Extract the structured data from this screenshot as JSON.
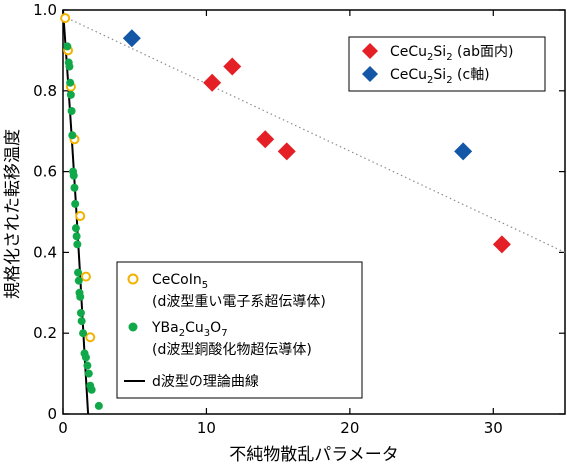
{
  "chart_data": {
    "type": "scatter",
    "xlabel": "不純物散乱パラメータ",
    "ylabel": "規格化された転移温度",
    "xlim": [
      0,
      35
    ],
    "ylim": [
      0,
      1.0
    ],
    "x_ticks": [
      "0",
      "10",
      "20",
      "30"
    ],
    "y_ticks": [
      "0",
      "0.2",
      "0.4",
      "0.6",
      "0.8",
      "1.0"
    ],
    "grid": false,
    "series": [
      {
        "name": "CeCu2Si2 (ab面内)",
        "legend_parts": [
          "CeCu",
          "2",
          "Si",
          "2",
          " (ab面内)"
        ],
        "marker": "diamond-filled",
        "color": "#e41f26",
        "x": [
          10.4,
          11.8,
          14.1,
          15.6,
          30.6
        ],
        "y": [
          0.82,
          0.86,
          0.68,
          0.65,
          0.42
        ]
      },
      {
        "name": "CeCu2Si2 (c軸)",
        "legend_parts": [
          "CeCu",
          "2",
          "Si",
          "2",
          " (c軸)"
        ],
        "marker": "diamond-filled",
        "color": "#1357a6",
        "x": [
          4.8,
          27.9
        ],
        "y": [
          0.93,
          0.65
        ]
      },
      {
        "name": "CeCoIn5 (d波型重い電子系超伝導体)",
        "legend_parts": [
          "CeCoIn",
          "5"
        ],
        "legend_note": "(d波型重い電子系超伝導体)",
        "marker": "circle-open",
        "color": "#f2b200",
        "x": [
          0.15,
          0.35,
          0.55,
          0.8,
          1.2,
          1.6,
          1.9
        ],
        "y": [
          0.98,
          0.9,
          0.81,
          0.68,
          0.49,
          0.34,
          0.19
        ]
      },
      {
        "name": "YBa2Cu3O7 (d波型銅酸化物超伝導体)",
        "legend_parts": [
          "YBa",
          "2",
          "Cu",
          "3",
          "O",
          "7"
        ],
        "legend_note": "(d波型銅酸化物超伝導体)",
        "marker": "circle-filled",
        "color": "#11a84a",
        "x": [
          0.3,
          0.4,
          0.45,
          0.5,
          0.55,
          0.6,
          0.65,
          0.7,
          0.75,
          0.8,
          0.85,
          0.9,
          0.95,
          1.0,
          1.05,
          1.1,
          1.15,
          1.2,
          1.25,
          1.3,
          1.4,
          1.5,
          1.6,
          1.7,
          1.8,
          1.9,
          2.0,
          2.5
        ],
        "y": [
          0.91,
          0.87,
          0.86,
          0.82,
          0.79,
          0.75,
          0.69,
          0.6,
          0.59,
          0.56,
          0.52,
          0.46,
          0.44,
          0.42,
          0.35,
          0.33,
          0.3,
          0.29,
          0.25,
          0.23,
          0.2,
          0.15,
          0.14,
          0.12,
          0.1,
          0.07,
          0.06,
          0.02
        ]
      },
      {
        "name": "d波型の理論曲線",
        "marker": "line",
        "color": "#000000",
        "x": [
          0.0,
          0.3,
          0.6,
          0.9,
          1.2,
          1.5,
          1.75
        ],
        "y": [
          1.0,
          0.85,
          0.69,
          0.52,
          0.34,
          0.15,
          0.0
        ]
      }
    ],
    "trend_line": {
      "style": "dotted",
      "color": "#8c8c8c",
      "x": [
        0,
        35
      ],
      "y": [
        0.985,
        0.4
      ]
    },
    "legends": [
      {
        "placement": "top-right",
        "entries": [
          0,
          1
        ]
      },
      {
        "placement": "bottom-left",
        "entries": [
          2,
          3,
          4
        ]
      }
    ]
  }
}
